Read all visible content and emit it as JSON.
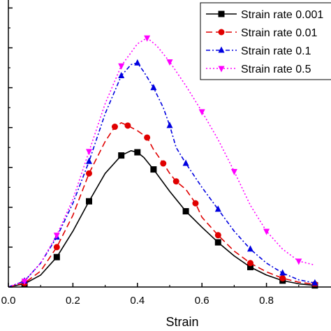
{
  "chart_data": {
    "type": "line",
    "title": "",
    "xlabel": "Strain",
    "ylabel": "",
    "xlim": [
      0,
      1.0
    ],
    "ylim": [
      0,
      7.2
    ],
    "x_ticks": [
      "0.0",
      "0.2",
      "0.4",
      "0.6",
      "0.8"
    ],
    "y_tick_values": [
      0,
      1,
      2,
      3,
      4,
      5,
      6,
      7
    ],
    "grid": false,
    "legend_position": "top-right",
    "series": [
      {
        "name": "Strain rate 0.001",
        "color": "#000000",
        "line_style": "solid",
        "marker": "square",
        "x": [
          0.0,
          0.05,
          0.1,
          0.15,
          0.2,
          0.25,
          0.3,
          0.35,
          0.38,
          0.4,
          0.42,
          0.45,
          0.5,
          0.55,
          0.6,
          0.65,
          0.7,
          0.75,
          0.8,
          0.85,
          0.9,
          0.95
        ],
        "y": [
          0.0,
          0.08,
          0.3,
          0.75,
          1.4,
          2.15,
          2.85,
          3.3,
          3.42,
          3.38,
          3.25,
          2.95,
          2.4,
          1.9,
          1.5,
          1.12,
          0.78,
          0.5,
          0.3,
          0.16,
          0.08,
          0.04
        ]
      },
      {
        "name": "Strain rate 0.01",
        "color": "#e00000",
        "line_style": "dashed",
        "marker": "circle",
        "x": [
          0.0,
          0.05,
          0.1,
          0.15,
          0.2,
          0.25,
          0.3,
          0.33,
          0.35,
          0.37,
          0.4,
          0.43,
          0.45,
          0.48,
          0.5,
          0.52,
          0.55,
          0.58,
          0.6,
          0.65,
          0.7,
          0.75,
          0.8,
          0.85,
          0.9,
          0.95
        ],
        "y": [
          0.0,
          0.1,
          0.4,
          1.0,
          1.8,
          2.85,
          3.65,
          4.02,
          4.12,
          4.05,
          3.92,
          3.75,
          3.45,
          3.1,
          2.85,
          2.65,
          2.45,
          2.1,
          1.75,
          1.3,
          0.9,
          0.6,
          0.38,
          0.22,
          0.12,
          0.07
        ]
      },
      {
        "name": "Strain rate 0.1",
        "color": "#0000e0",
        "line_style": "dash-dot",
        "marker": "triangle-up",
        "x": [
          0.0,
          0.05,
          0.1,
          0.15,
          0.2,
          0.25,
          0.3,
          0.35,
          0.38,
          0.4,
          0.42,
          0.45,
          0.48,
          0.5,
          0.52,
          0.55,
          0.6,
          0.65,
          0.7,
          0.75,
          0.8,
          0.85,
          0.9,
          0.95
        ],
        "y": [
          0.0,
          0.15,
          0.6,
          1.25,
          2.1,
          3.15,
          4.35,
          5.3,
          5.58,
          5.62,
          5.4,
          5.0,
          4.5,
          4.05,
          3.5,
          3.1,
          2.5,
          1.95,
          1.4,
          0.95,
          0.6,
          0.35,
          0.18,
          0.1
        ]
      },
      {
        "name": "Strain rate 0.5",
        "color": "#ff00ff",
        "line_style": "dotted",
        "marker": "triangle-down",
        "x": [
          0.0,
          0.05,
          0.1,
          0.15,
          0.2,
          0.25,
          0.3,
          0.35,
          0.4,
          0.43,
          0.46,
          0.5,
          0.55,
          0.6,
          0.65,
          0.7,
          0.75,
          0.8,
          0.85,
          0.9,
          0.95
        ],
        "y": [
          0.0,
          0.15,
          0.6,
          1.3,
          2.2,
          3.4,
          4.6,
          5.55,
          6.1,
          6.25,
          6.05,
          5.65,
          5.05,
          4.4,
          3.7,
          2.9,
          2.05,
          1.4,
          0.95,
          0.65,
          0.55
        ]
      }
    ]
  }
}
